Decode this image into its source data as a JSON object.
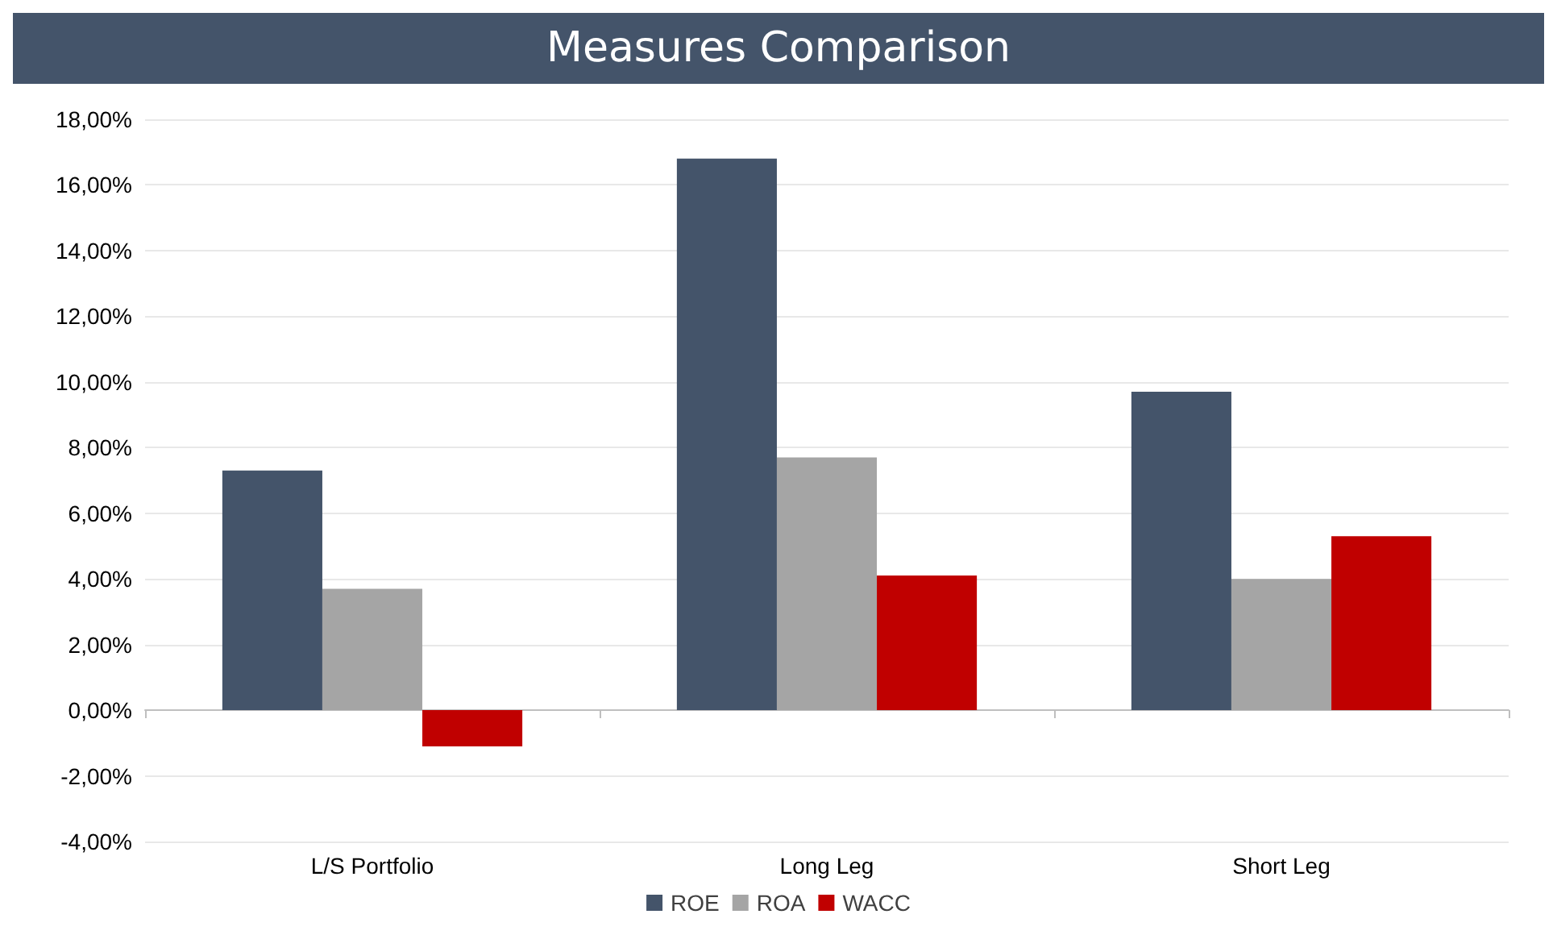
{
  "chart_data": {
    "type": "bar",
    "title": "Measures Comparison",
    "categories": [
      "L/S Portfolio",
      "Long Leg",
      "Short Leg"
    ],
    "series": [
      {
        "name": "ROE",
        "color": "#44546a",
        "values": [
          7.3,
          16.8,
          9.7
        ]
      },
      {
        "name": "ROA",
        "color": "#a5a5a5",
        "values": [
          3.7,
          7.7,
          4.0
        ]
      },
      {
        "name": "WACC",
        "color": "#c00000",
        "values": [
          -1.1,
          4.1,
          5.3
        ]
      }
    ],
    "ylim": [
      -4,
      18
    ],
    "yticks": [
      {
        "value": -4,
        "label": "-4,00%"
      },
      {
        "value": -2,
        "label": "-2,00%"
      },
      {
        "value": 0,
        "label": "0,00%"
      },
      {
        "value": 2,
        "label": "2,00%"
      },
      {
        "value": 4,
        "label": "4,00%"
      },
      {
        "value": 6,
        "label": "6,00%"
      },
      {
        "value": 8,
        "label": "8,00%"
      },
      {
        "value": 10,
        "label": "10,00%"
      },
      {
        "value": 12,
        "label": "12,00%"
      },
      {
        "value": 14,
        "label": "14,00%"
      },
      {
        "value": 16,
        "label": "16,00%"
      },
      {
        "value": 18,
        "label": "18,00%"
      }
    ],
    "grid": "y",
    "legend": "bottom"
  }
}
